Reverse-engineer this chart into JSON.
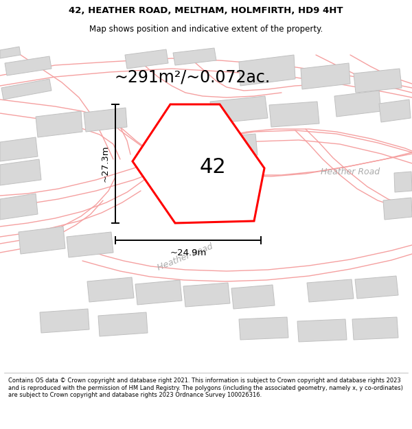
{
  "title_line1": "42, HEATHER ROAD, MELTHAM, HOLMFIRTH, HD9 4HT",
  "title_line2": "Map shows position and indicative extent of the property.",
  "area_text": "~291m²/~0.072ac.",
  "label_42": "42",
  "dim_width": "~24.9m",
  "dim_height": "~27.3m",
  "road_label_diag": "Heather Road",
  "road_label_right": "Heather Road",
  "footer_text": "Contains OS data © Crown copyright and database right 2021. This information is subject to Crown copyright and database rights 2023 and is reproduced with the permission of HM Land Registry. The polygons (including the associated geometry, namely x, y co-ordinates) are subject to Crown copyright and database rights 2023 Ordnance Survey 100026316.",
  "bg_color": "#ffffff",
  "map_bg": "#f8f8f8",
  "highlight_color": "#ff0000",
  "building_fill": "#d8d8d8",
  "building_edge": "#c0c0c0",
  "road_line_color": "#f5a0a0",
  "road_fill_color": "#eeeeee",
  "title_fontsize": 9.5,
  "subtitle_fontsize": 8.5,
  "area_fontsize": 17,
  "label_fontsize": 22,
  "dim_fontsize": 9.5,
  "footer_fontsize": 6.0,
  "road_label_fontsize": 9
}
